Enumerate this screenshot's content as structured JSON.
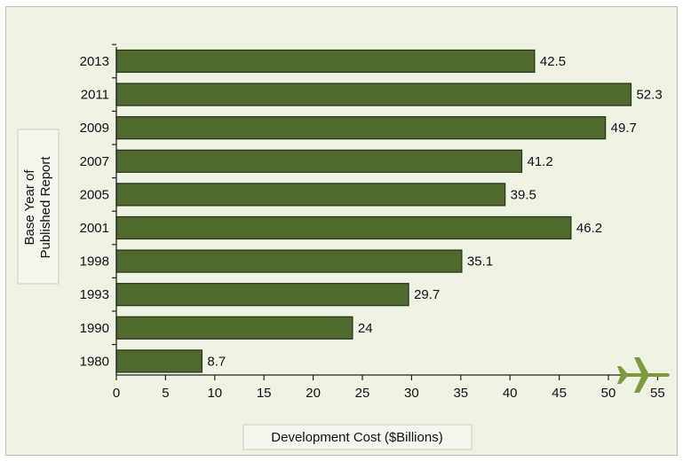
{
  "chart_data": {
    "type": "bar",
    "orientation": "horizontal",
    "categories": [
      "2013",
      "2011",
      "2009",
      "2007",
      "2005",
      "2001",
      "1998",
      "1993",
      "1990",
      "1980"
    ],
    "values": [
      42.5,
      52.3,
      49.7,
      41.2,
      39.5,
      46.2,
      35.1,
      29.7,
      24,
      8.7
    ],
    "value_labels": [
      "42.5",
      "52.3",
      "49.7",
      "41.2",
      "39.5",
      "46.2",
      "35.1",
      "29.7",
      "24",
      "8.7"
    ],
    "xlabel": "Development Cost ($Billions)",
    "ylabel_lines": [
      "Base Year of",
      "Published Report"
    ],
    "xlim": [
      0,
      55
    ],
    "xticks": [
      0,
      5,
      10,
      15,
      20,
      25,
      30,
      35,
      40,
      45,
      50,
      55
    ],
    "grid": false,
    "bar_color": "#4f6a2c",
    "background_color": "#eef3e4",
    "icon": "airplane-icon",
    "icon_color": "#7d9a3e"
  }
}
